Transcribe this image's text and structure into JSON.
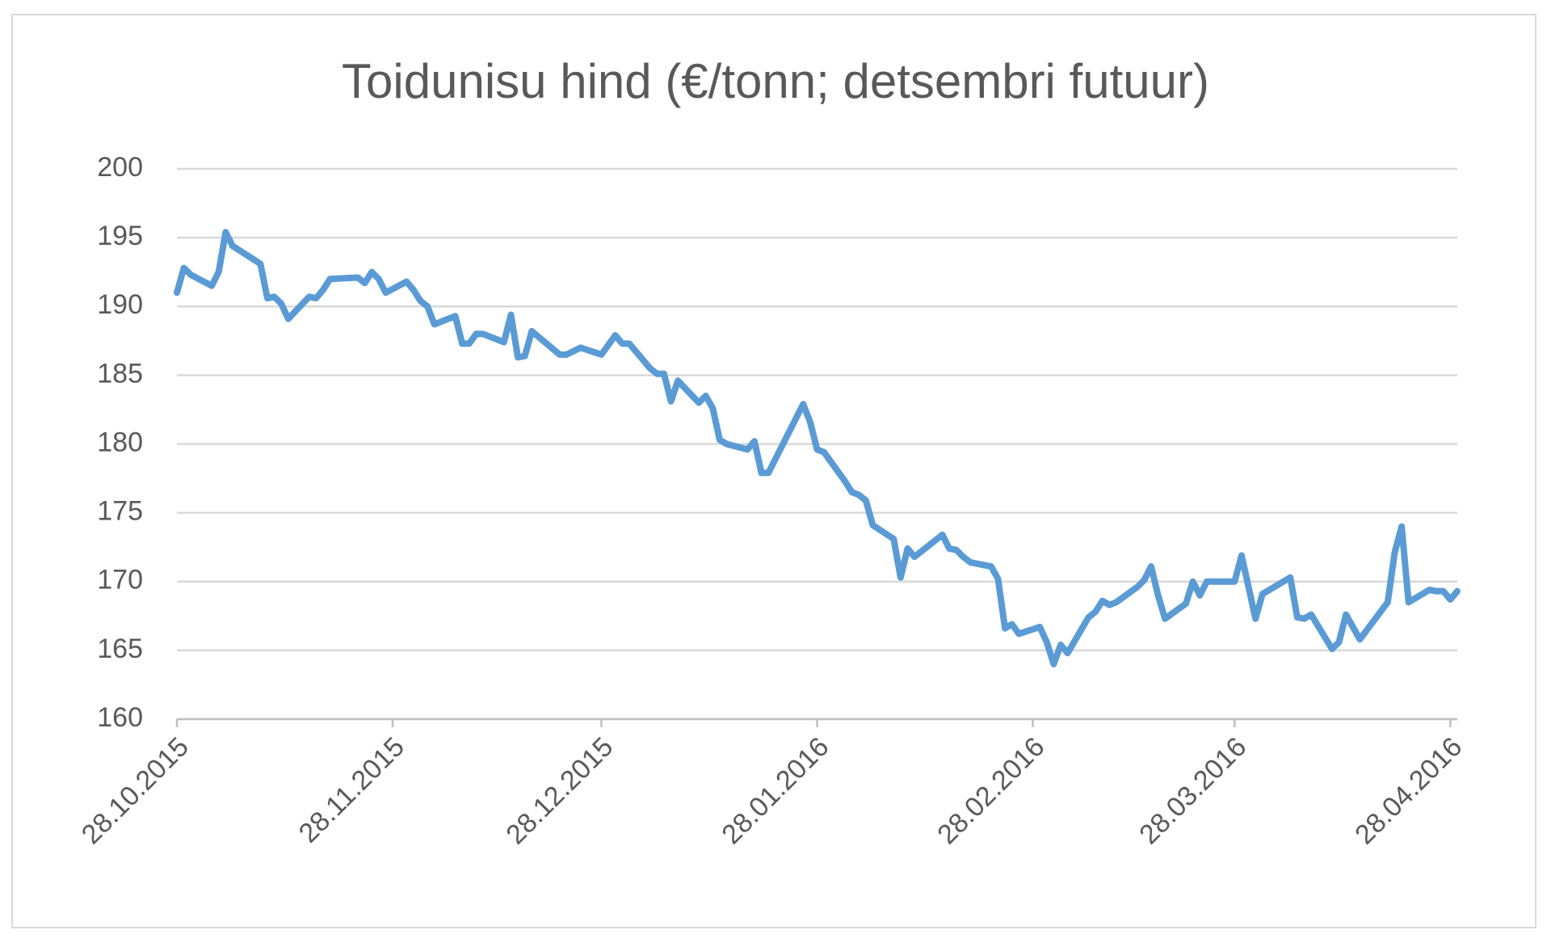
{
  "chart_data": {
    "type": "line",
    "title": "Toidunisu hind (€/tonn; detsembri futuur)",
    "x": [
      "28.10.2015",
      "29.10.2015",
      "30.10.2015",
      "02.11.2015",
      "03.11.2015",
      "04.11.2015",
      "05.11.2015",
      "09.11.2015",
      "10.11.2015",
      "11.11.2015",
      "12.11.2015",
      "13.11.2015",
      "16.11.2015",
      "17.11.2015",
      "18.11.2015",
      "19.11.2015",
      "23.11.2015",
      "24.11.2015",
      "25.11.2015",
      "26.11.2015",
      "27.11.2015",
      "30.11.2015",
      "01.12.2015",
      "02.12.2015",
      "03.12.2015",
      "04.12.2015",
      "07.12.2015",
      "08.12.2015",
      "09.12.2015",
      "10.12.2015",
      "11.12.2015",
      "14.12.2015",
      "15.12.2015",
      "16.12.2015",
      "17.12.2015",
      "18.12.2015",
      "22.12.2015",
      "23.12.2015",
      "25.12.2015",
      "28.12.2015",
      "30.12.2015",
      "31.12.2015",
      "01.01.2016",
      "04.01.2016",
      "05.01.2016",
      "06.01.2016",
      "07.01.2016",
      "08.01.2016",
      "11.01.2016",
      "12.01.2016",
      "13.01.2016",
      "14.01.2016",
      "15.01.2016",
      "18.01.2016",
      "19.01.2016",
      "20.01.2016",
      "21.01.2016",
      "26.01.2016",
      "27.01.2016",
      "28.01.2016",
      "29.01.2016",
      "01.02.2016",
      "02.02.2016",
      "03.02.2016",
      "04.02.2016",
      "05.02.2016",
      "08.02.2016",
      "09.02.2016",
      "10.02.2016",
      "11.02.2016",
      "15.02.2016",
      "16.02.2016",
      "17.02.2016",
      "18.02.2016",
      "19.02.2016",
      "22.02.2016",
      "23.02.2016",
      "24.02.2016",
      "25.02.2016",
      "26.02.2016",
      "29.02.2016",
      "01.03.2016",
      "02.03.2016",
      "03.03.2016",
      "04.03.2016",
      "07.03.2016",
      "08.03.2016",
      "09.03.2016",
      "10.03.2016",
      "11.03.2016",
      "14.03.2016",
      "15.03.2016",
      "16.03.2016",
      "17.03.2016",
      "18.03.2016",
      "21.03.2016",
      "22.03.2016",
      "23.03.2016",
      "24.03.2016",
      "28.03.2016",
      "29.03.2016",
      "30.03.2016",
      "31.03.2016",
      "01.04.2016",
      "05.04.2016",
      "06.04.2016",
      "07.04.2016",
      "08.04.2016",
      "11.04.2016",
      "12.04.2016",
      "13.04.2016",
      "15.04.2016",
      "19.04.2016",
      "20.04.2016",
      "21.04.2016",
      "22.04.2016",
      "25.04.2016",
      "26.04.2016",
      "27.04.2016",
      "28.04.2016",
      "29.04.2016"
    ],
    "values": [
      191.0,
      192.8,
      192.3,
      191.5,
      192.5,
      195.4,
      194.4,
      193.1,
      190.6,
      190.7,
      190.2,
      189.1,
      190.7,
      190.6,
      191.2,
      192.0,
      192.1,
      191.7,
      192.5,
      192.0,
      191.0,
      191.8,
      191.2,
      190.4,
      190.0,
      188.7,
      189.3,
      187.3,
      187.3,
      188.0,
      188.0,
      187.4,
      189.4,
      186.3,
      186.4,
      188.2,
      186.5,
      186.5,
      187.0,
      186.5,
      187.9,
      187.3,
      187.3,
      185.5,
      185.1,
      185.1,
      183.1,
      184.6,
      183.0,
      183.5,
      182.6,
      180.3,
      180.0,
      179.6,
      180.2,
      177.9,
      177.9,
      182.9,
      181.6,
      179.6,
      179.4,
      177.3,
      176.5,
      176.3,
      175.9,
      174.1,
      173.1,
      170.3,
      172.4,
      171.8,
      173.4,
      172.4,
      172.3,
      171.8,
      171.4,
      171.1,
      170.2,
      166.6,
      166.9,
      166.2,
      166.7,
      165.6,
      164.0,
      165.4,
      164.8,
      167.4,
      167.8,
      168.6,
      168.3,
      168.5,
      169.6,
      170.1,
      171.1,
      169.0,
      167.3,
      168.4,
      170.0,
      169.0,
      170.0,
      170.0,
      171.9,
      169.6,
      167.3,
      169.1,
      170.3,
      167.4,
      167.3,
      167.6,
      165.1,
      165.6,
      167.6,
      165.8,
      168.5,
      172.1,
      174.0,
      168.5,
      169.4,
      169.3,
      169.3,
      168.7,
      169.3
    ],
    "color": "#5b9bd5",
    "xlim": [
      "28.10.2015",
      "29.04.2016"
    ],
    "xticks": [
      "28.10.2015",
      "28.11.2015",
      "28.12.2015",
      "28.01.2016",
      "28.02.2016",
      "28.03.2016",
      "28.04.2016"
    ],
    "ylim": [
      160,
      200
    ],
    "yticks": [
      160,
      165,
      170,
      175,
      180,
      185,
      190,
      195,
      200
    ],
    "grid": true
  }
}
